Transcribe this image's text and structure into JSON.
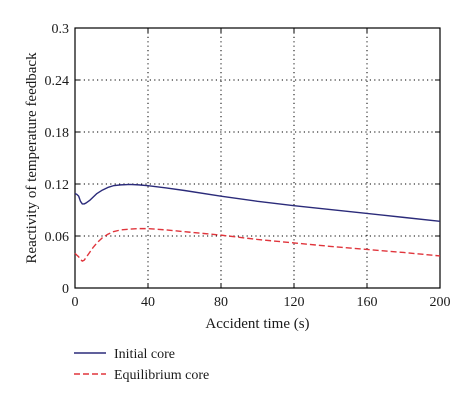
{
  "chart_data": {
    "type": "line",
    "title": "",
    "xlabel": "Accident time (s)",
    "ylabel": "Reactivity of temperature feedback",
    "xlim": [
      0,
      200
    ],
    "ylim": [
      0,
      0.3
    ],
    "x_ticks": [
      0,
      40,
      80,
      120,
      160,
      200
    ],
    "y_ticks": [
      0,
      0.06,
      0.12,
      0.18,
      0.24,
      0.3
    ],
    "x_tick_labels": [
      "0",
      "40",
      "80",
      "120",
      "160",
      "200"
    ],
    "y_tick_labels": [
      "0",
      "0.06",
      "0.12",
      "0.18",
      "0.24",
      "0.3"
    ],
    "grid": true,
    "grid_style": "dotted",
    "legend_position": "below the plot",
    "series": [
      {
        "name": "Initial core",
        "color": "#2b2b7a",
        "dash": "solid",
        "x": [
          0,
          1,
          2,
          3,
          4,
          5,
          6,
          8,
          10,
          12,
          15,
          18,
          21,
          25,
          30,
          35,
          40,
          50,
          60,
          80,
          100,
          120,
          140,
          160,
          180,
          200
        ],
        "y": [
          0.109,
          0.108,
          0.106,
          0.1,
          0.097,
          0.097,
          0.098,
          0.101,
          0.105,
          0.109,
          0.113,
          0.116,
          0.118,
          0.119,
          0.1195,
          0.119,
          0.118,
          0.1155,
          0.1125,
          0.106,
          0.1,
          0.095,
          0.0905,
          0.086,
          0.0815,
          0.077
        ]
      },
      {
        "name": "Equilibrium core",
        "color": "#e0353c",
        "dash": "dashed",
        "x": [
          0,
          1,
          2,
          3,
          4,
          5,
          6,
          8,
          10,
          12,
          15,
          18,
          21,
          25,
          30,
          35,
          40,
          50,
          60,
          80,
          100,
          120,
          140,
          160,
          180,
          200
        ],
        "y": [
          0.04,
          0.038,
          0.036,
          0.033,
          0.031,
          0.032,
          0.035,
          0.041,
          0.047,
          0.052,
          0.058,
          0.062,
          0.065,
          0.067,
          0.068,
          0.0685,
          0.0685,
          0.067,
          0.065,
          0.061,
          0.056,
          0.052,
          0.048,
          0.0445,
          0.041,
          0.037
        ]
      }
    ]
  }
}
